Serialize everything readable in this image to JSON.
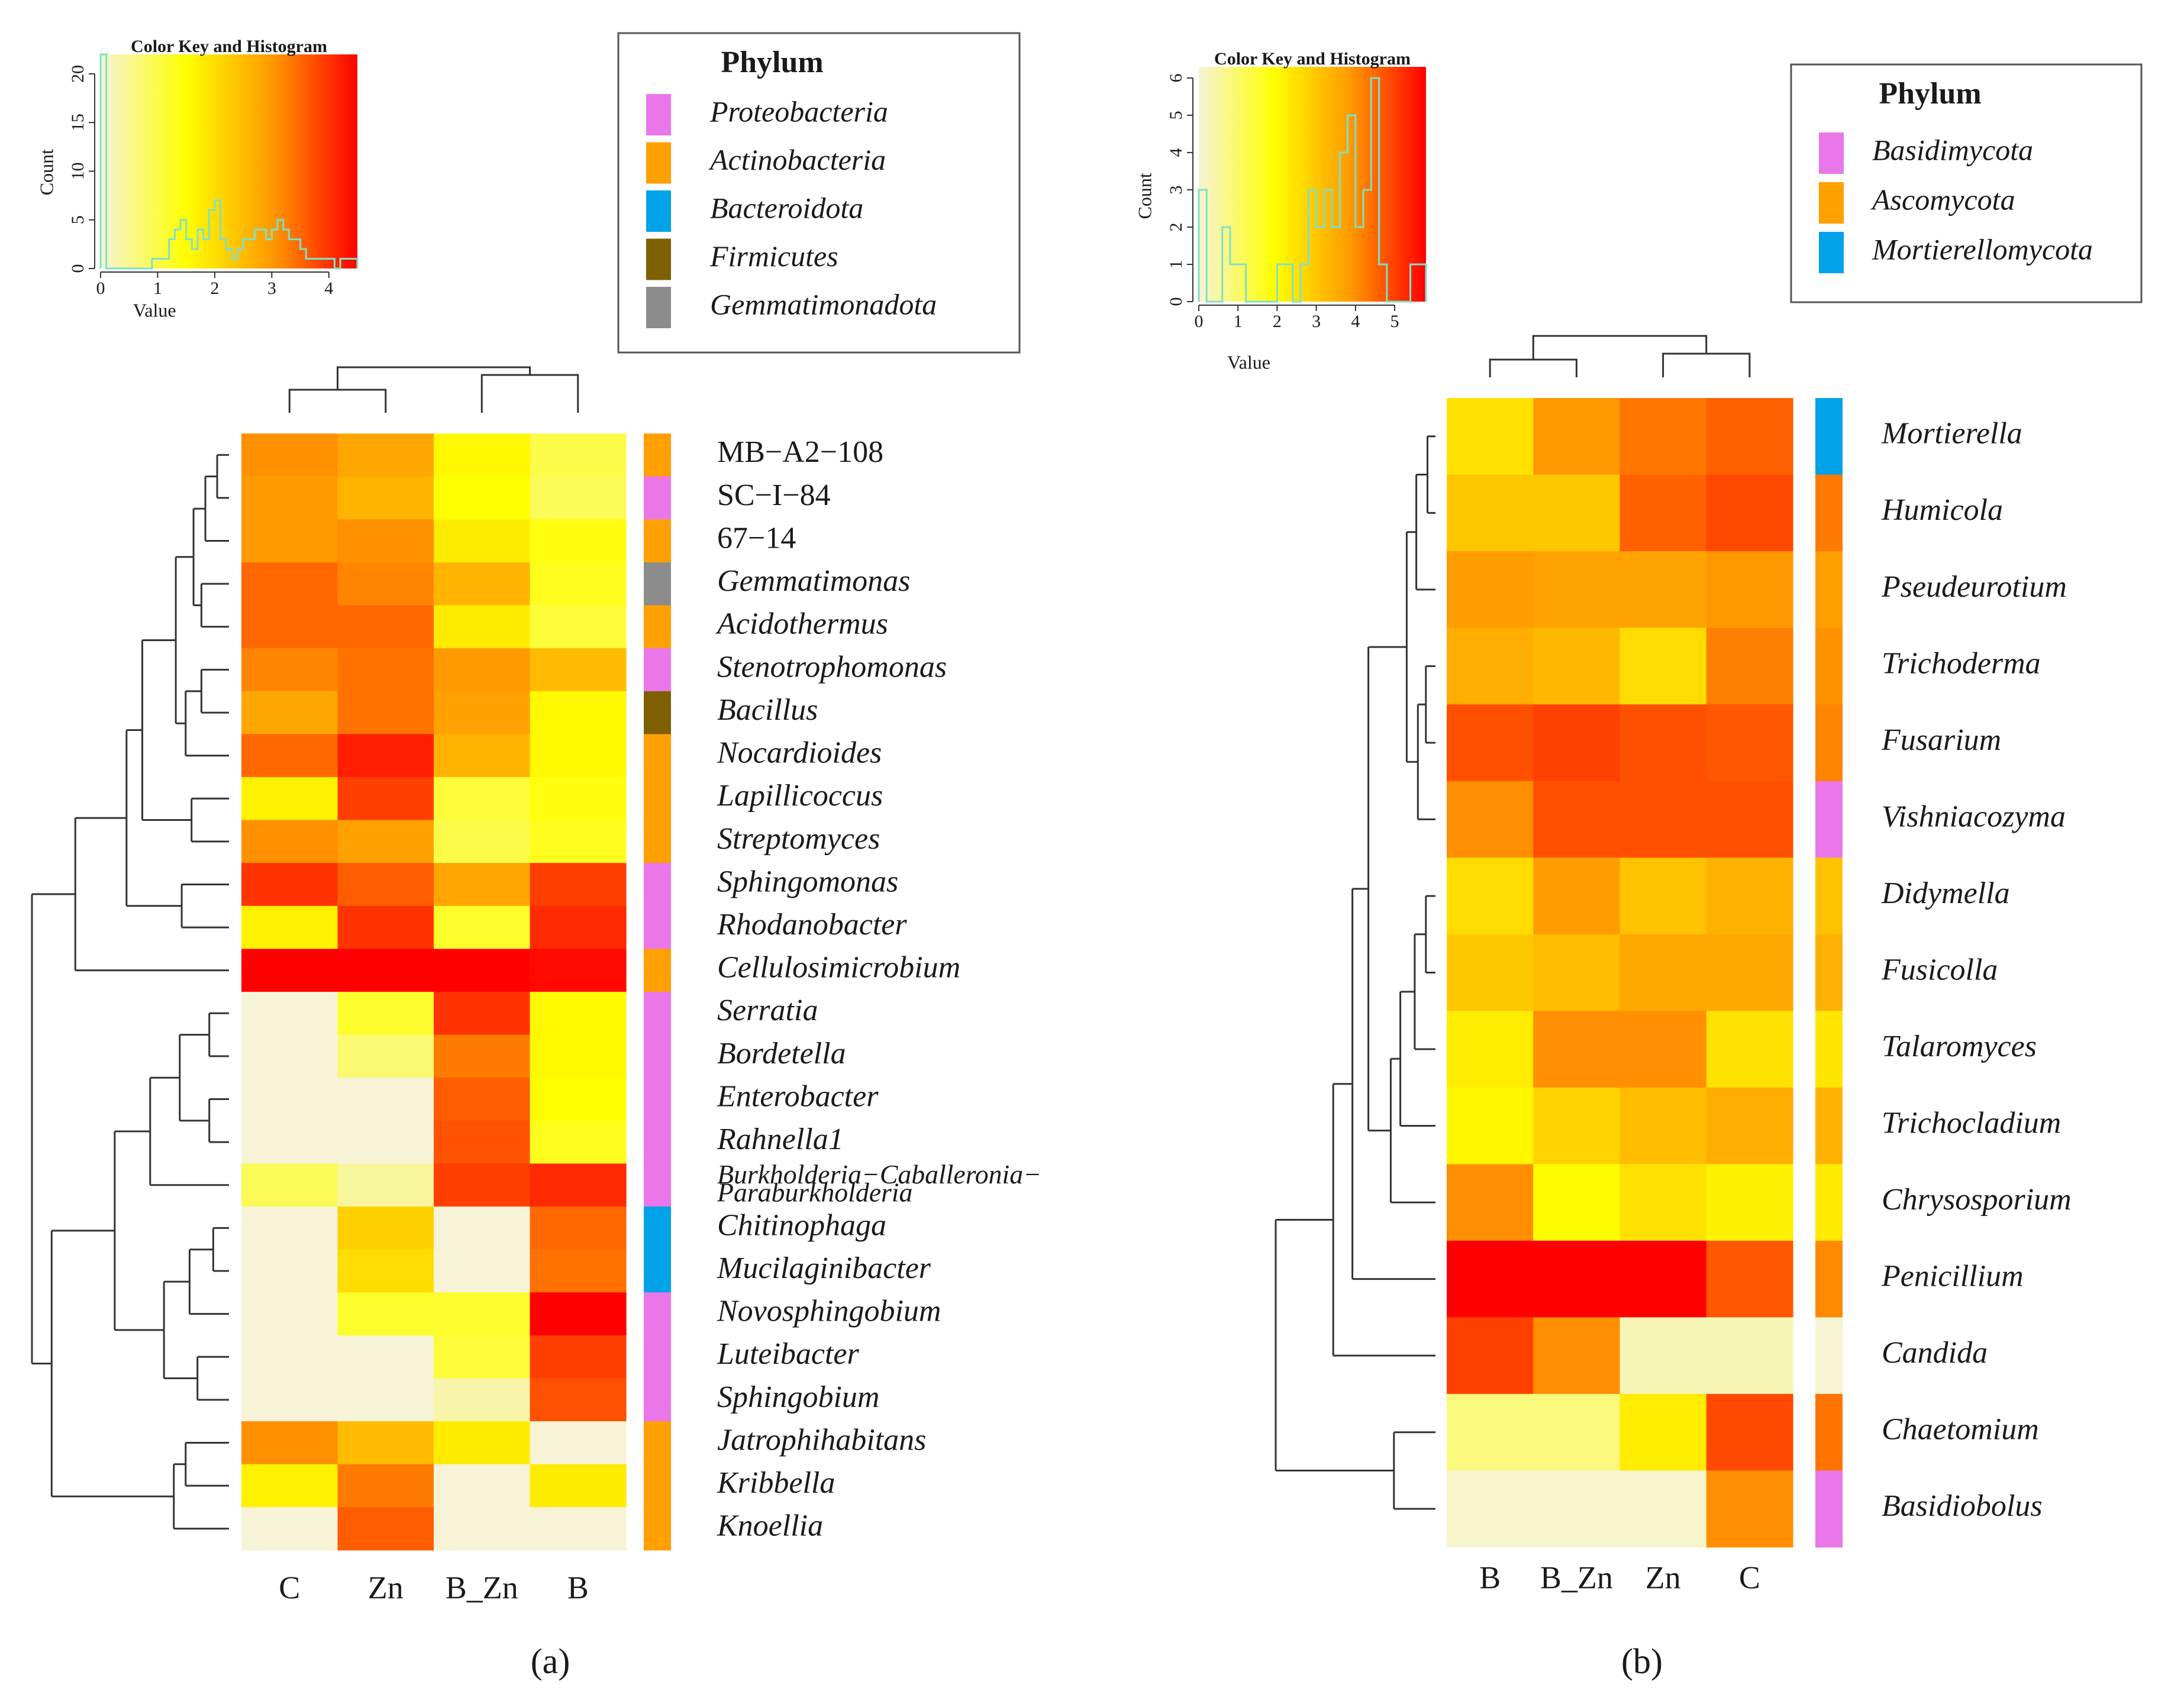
{
  "chart_data": [
    {
      "type": "heatmap",
      "panel_label": "(a)",
      "columns": [
        "C",
        "Zn",
        "B_Zn",
        "B"
      ],
      "rows": [
        "MB−A2−108",
        "SC−I−84",
        "67−14",
        "Gemmatimonas",
        "Acidothermus",
        "Stenotrophomonas",
        "Bacillus",
        "Nocardioides",
        "Lapillicoccus",
        "Streptomyces",
        "Sphingomonas",
        "Rhodanobacter",
        "Cellulosimicrobium",
        "Serratia",
        "Bordetella",
        "Enterobacter",
        "Rahnella1",
        "Burkholderia−Caballeronia−Paraburkholderia",
        "Chitinophaga",
        "Mucilaginibacter",
        "Novosphingobium",
        "Luteibacter",
        "Sphingobium",
        "Jatrophihabitans",
        "Kribbella",
        "Knoellia"
      ],
      "row_label_lines": {
        "Burkholderia−Caballeronia−Paraburkholderia": [
          "Burkholderia−Caballeronia−",
          "Paraburkholderia"
        ]
      },
      "italic_rows": [
        "Gemmatimonas",
        "Acidothermus",
        "Stenotrophomonas",
        "Bacillus",
        "Nocardioides",
        "Lapillicoccus",
        "Streptomyces",
        "Sphingomonas",
        "Rhodanobacter",
        "Cellulosimicrobium",
        "Serratia",
        "Bordetella",
        "Enterobacter",
        "Rahnella1",
        "Burkholderia−Caballeronia−Paraburkholderia",
        "Chitinophaga",
        "Mucilaginibacter",
        "Novosphingobium",
        "Luteibacter",
        "Sphingobium",
        "Jatrophihabitans",
        "Kribbella",
        "Knoellia"
      ],
      "values": [
        [
          3.1,
          2.8,
          1.6,
          1.0
        ],
        [
          3.0,
          2.6,
          1.5,
          0.9
        ],
        [
          3.0,
          3.1,
          1.8,
          1.4
        ],
        [
          3.5,
          3.2,
          2.6,
          1.3
        ],
        [
          3.5,
          3.5,
          1.8,
          1.1
        ],
        [
          3.2,
          3.4,
          3.0,
          2.5
        ],
        [
          2.8,
          3.4,
          2.9,
          1.6
        ],
        [
          3.5,
          4.2,
          2.6,
          1.6
        ],
        [
          1.7,
          3.9,
          1.1,
          1.4
        ],
        [
          3.1,
          2.9,
          1.0,
          1.3
        ],
        [
          4.0,
          3.6,
          2.8,
          3.9
        ],
        [
          1.7,
          4.0,
          1.2,
          4.1
        ],
        [
          4.7,
          4.6,
          4.8,
          4.4
        ],
        [
          0.0,
          1.2,
          4.0,
          1.6
        ],
        [
          0.0,
          0.7,
          3.3,
          1.6
        ],
        [
          0.0,
          0.0,
          3.6,
          1.5
        ],
        [
          0.0,
          0.0,
          3.7,
          1.3
        ],
        [
          0.9,
          0.4,
          3.9,
          4.1
        ],
        [
          0.0,
          2.2,
          0.0,
          3.5
        ],
        [
          0.0,
          2.0,
          0.0,
          3.4
        ],
        [
          0.0,
          1.2,
          1.2,
          4.9
        ],
        [
          0.0,
          0.0,
          1.1,
          3.9
        ],
        [
          0.0,
          0.0,
          0.3,
          3.7
        ],
        [
          3.1,
          2.5,
          1.8,
          0.0
        ],
        [
          1.7,
          3.3,
          0.0,
          1.8
        ],
        [
          0.0,
          3.6,
          0.0,
          0.0
        ]
      ],
      "row_phylum": [
        "Actinobacteria",
        "Proteobacteria",
        "Actinobacteria",
        "Gemmatimonadota",
        "Actinobacteria",
        "Proteobacteria",
        "Firmicutes",
        "Actinobacteria",
        "Actinobacteria",
        "Actinobacteria",
        "Proteobacteria",
        "Proteobacteria",
        "Actinobacteria",
        "Proteobacteria",
        "Proteobacteria",
        "Proteobacteria",
        "Proteobacteria",
        "Proteobacteria",
        "Bacteroidota",
        "Bacteroidota",
        "Proteobacteria",
        "Proteobacteria",
        "Proteobacteria",
        "Actinobacteria",
        "Actinobacteria",
        "Actinobacteria"
      ],
      "legend": {
        "title": "Phylum",
        "items": [
          {
            "label": "Proteobacteria",
            "color": "#ea77ea"
          },
          {
            "label": "Actinobacteria",
            "color": "#ff9f00"
          },
          {
            "label": "Bacteroidota",
            "color": "#00a2e8"
          },
          {
            "label": "Firmicutes",
            "color": "#7f6000"
          },
          {
            "label": "Gemmatimonadota",
            "color": "#8c8c8c"
          }
        ]
      },
      "color_key": {
        "title": "Color Key and Histogram",
        "xlabel": "Value",
        "ylabel": "Count",
        "value_range": [
          0,
          4.5
        ],
        "x_ticks": [
          0,
          1,
          2,
          3,
          4
        ],
        "y_ticks": [
          0,
          5,
          10,
          15,
          20
        ],
        "ylim": [
          0,
          22
        ],
        "hist_bin_starts": [
          0.0,
          0.1,
          0.2,
          0.3,
          0.4,
          0.5,
          0.6,
          0.7,
          0.8,
          0.9,
          1.0,
          1.1,
          1.2,
          1.3,
          1.4,
          1.5,
          1.6,
          1.7,
          1.8,
          1.9,
          2.0,
          2.1,
          2.2,
          2.3,
          2.4,
          2.5,
          2.6,
          2.7,
          2.8,
          2.9,
          3.0,
          3.1,
          3.2,
          3.3,
          3.4,
          3.5,
          3.6,
          3.7,
          3.8,
          3.9,
          4.0,
          4.1,
          4.2,
          4.3,
          4.4,
          4.5
        ],
        "hist_counts": [
          22,
          0,
          0,
          0,
          0,
          0,
          0,
          0,
          0,
          1,
          1,
          1,
          3,
          4,
          5,
          3,
          2,
          4,
          3,
          6,
          7,
          3,
          2,
          1,
          2,
          3,
          3,
          4,
          4,
          3,
          4,
          5,
          4,
          3,
          3,
          2,
          1,
          1,
          1,
          1,
          1,
          0,
          1,
          1,
          1,
          1
        ]
      },
      "column_dendrogram": {
        "top_pairs": [
          [
            "C",
            "Zn"
          ],
          [
            "B_Zn",
            "B"
          ]
        ]
      }
    },
    {
      "type": "heatmap",
      "panel_label": "(b)",
      "columns": [
        "B",
        "B_Zn",
        "Zn",
        "C"
      ],
      "rows": [
        "Mortierella",
        "Humicola",
        "Pseudeurotium",
        "Trichoderma",
        "Fusarium",
        "Vishniacozyma",
        "Didymella",
        "Fusicolla",
        "Talaromyces",
        "Trichocladium",
        "Chrysosporium",
        "Penicillium",
        "Candida",
        "Chaetomium",
        "Basidiobolus"
      ],
      "italic_rows": [
        "Mortierella",
        "Humicola",
        "Pseudeurotium",
        "Trichoderma",
        "Fusarium",
        "Vishniacozyma",
        "Didymella",
        "Fusicolla",
        "Talaromyces",
        "Trichocladium",
        "Chrysosporium",
        "Penicillium",
        "Candida",
        "Chaetomium",
        "Basidiobolus"
      ],
      "values": [
        [
          2.5,
          3.9,
          4.3,
          4.6
        ],
        [
          3.0,
          3.0,
          4.6,
          4.9
        ],
        [
          3.8,
          3.7,
          3.7,
          3.9
        ],
        [
          3.5,
          3.3,
          2.6,
          4.2
        ],
        [
          4.8,
          5.0,
          4.8,
          4.7
        ],
        [
          4.0,
          4.8,
          4.8,
          4.8
        ],
        [
          2.6,
          3.8,
          3.1,
          3.4
        ],
        [
          3.0,
          3.2,
          3.6,
          3.6
        ],
        [
          2.3,
          4.0,
          4.0,
          2.5
        ],
        [
          2.1,
          2.8,
          3.2,
          3.5
        ],
        [
          4.0,
          2.0,
          2.5,
          2.2
        ],
        [
          6.0,
          6.0,
          5.9,
          4.7
        ],
        [
          5.0,
          4.0,
          0.3,
          0.3
        ],
        [
          0.8,
          0.8,
          2.3,
          4.9
        ],
        [
          0.1,
          0.1,
          0.1,
          4.0
        ]
      ],
      "row_phylum": [
        "Mortierellomycota",
        "Ascomycota",
        "Ascomycota",
        "Ascomycota",
        "Ascomycota",
        "Basidimycota",
        "Ascomycota",
        "Ascomycota",
        "Ascomycota",
        "Ascomycota",
        "Ascomycota",
        "Ascomycota",
        "Ascomycota",
        "Ascomycota",
        "Basidimycota"
      ],
      "row_side_colors": [
        "#00a2e8",
        "#ff7a00",
        "#ff9f00",
        "#ff9200",
        "#ff8400",
        "#ea77ea",
        "#ffc200",
        "#ffb000",
        "#ffe600",
        "#ffb200",
        "#ffea00",
        "#ff8a00",
        "#f6f3d2",
        "#ff7300",
        "#ea77ea"
      ],
      "legend": {
        "title": "Phylum",
        "items": [
          {
            "label": "Basidimycota",
            "color": "#ea77ea"
          },
          {
            "label": "Ascomycota",
            "color": "#ff9f00"
          },
          {
            "label": "Mortierellomycota",
            "color": "#00a2e8"
          }
        ]
      },
      "color_key": {
        "title": "Color Key and Histogram",
        "xlabel": "Value",
        "ylabel": "Count",
        "value_range": [
          0,
          5.8
        ],
        "x_ticks": [
          0,
          1,
          2,
          3,
          4,
          5
        ],
        "y_ticks": [
          0,
          1,
          2,
          3,
          4,
          5,
          6
        ],
        "ylim": [
          0,
          6.3
        ],
        "hist_bin_starts": [
          0.0,
          0.2,
          0.4,
          0.6,
          0.8,
          1.0,
          1.2,
          1.4,
          1.6,
          1.8,
          2.0,
          2.2,
          2.4,
          2.6,
          2.8,
          3.0,
          3.2,
          3.4,
          3.6,
          3.8,
          4.0,
          4.2,
          4.4,
          4.6,
          4.8,
          5.0,
          5.2,
          5.4,
          5.6
        ],
        "hist_counts": [
          3,
          0,
          0,
          2,
          1,
          1,
          0,
          0,
          0,
          0,
          1,
          1,
          0,
          1,
          3,
          2,
          3,
          2,
          4,
          5,
          2,
          3,
          6,
          1,
          0,
          0,
          0,
          1,
          1
        ]
      },
      "column_dendrogram": {
        "top_pairs": [
          [
            "B",
            "B_Zn"
          ],
          [
            "Zn",
            "C"
          ]
        ]
      }
    }
  ],
  "colors": {
    "heat_stops": [
      "#f6f3d6",
      "#ffff00",
      "#ff9a00",
      "#ff0000"
    ],
    "dendrogram": "#333333",
    "hist_line": "#7fe0c8"
  }
}
